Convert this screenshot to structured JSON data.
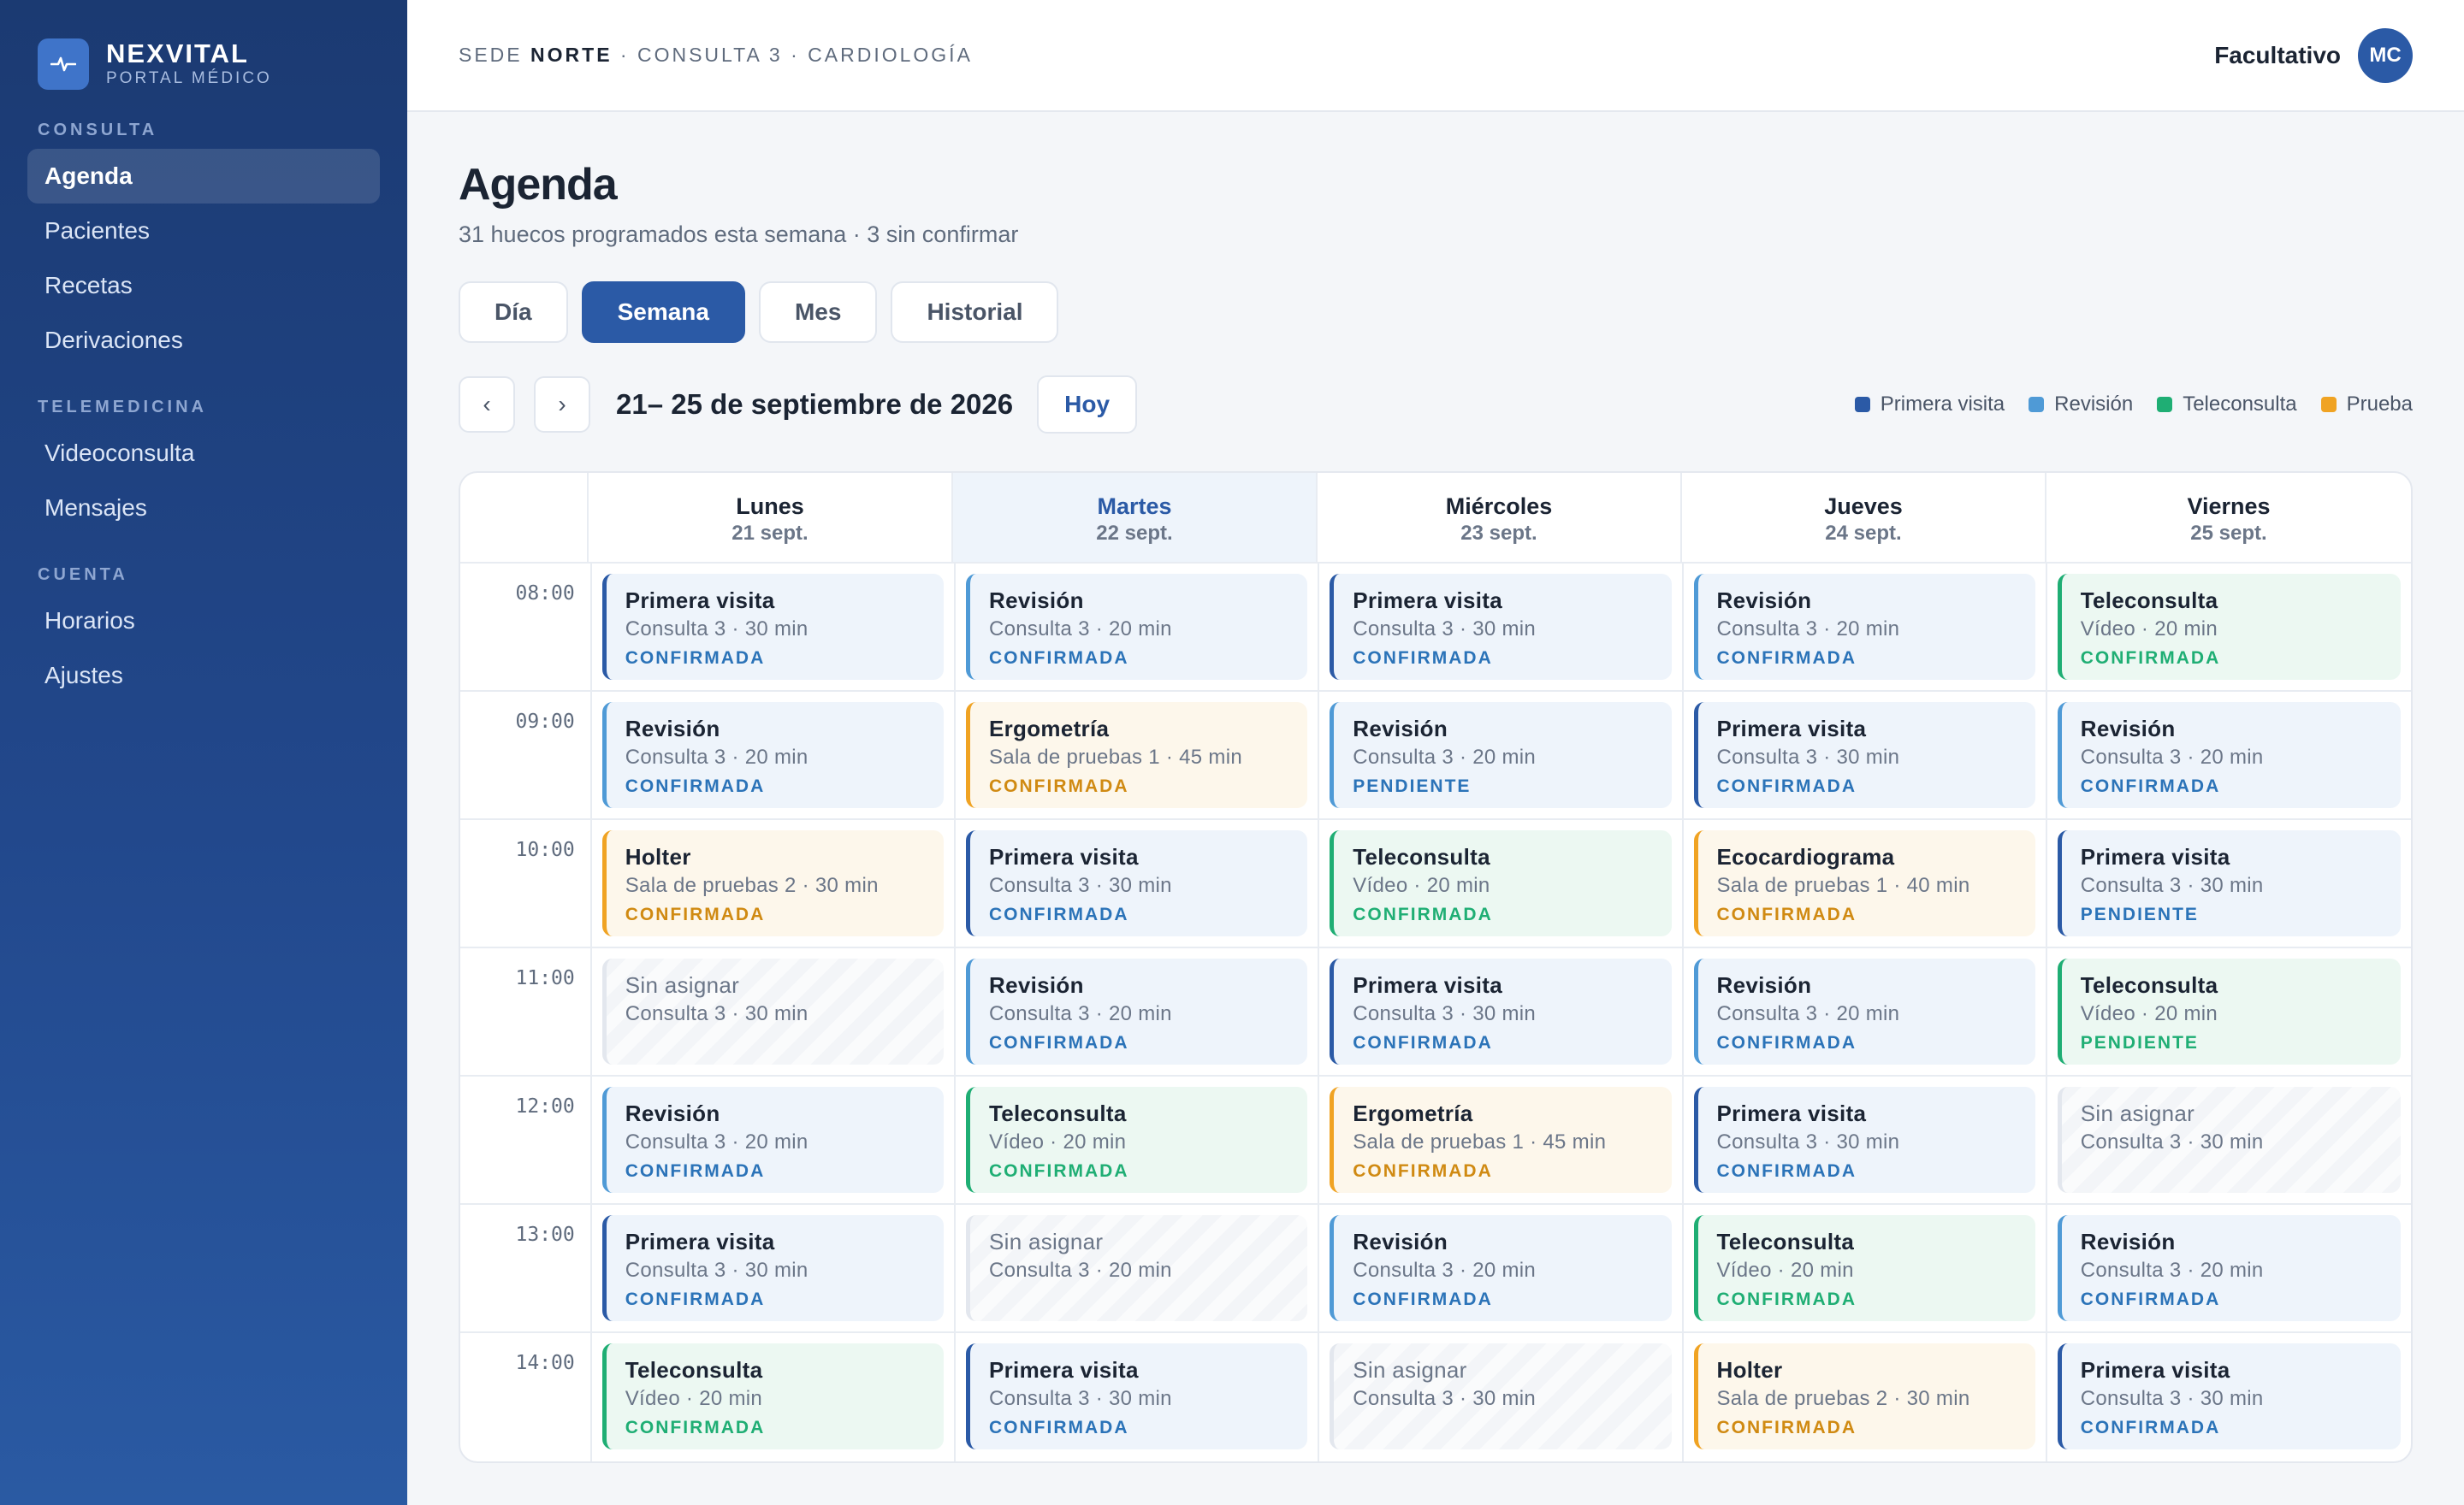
{
  "brand": {
    "name": "NEXVITAL",
    "subtitle": "PORTAL MÉDICO"
  },
  "sidebar": {
    "sections": [
      {
        "title": "CONSULTA",
        "items": [
          {
            "label": "Agenda",
            "active": true
          },
          {
            "label": "Pacientes"
          },
          {
            "label": "Recetas"
          },
          {
            "label": "Derivaciones"
          }
        ]
      },
      {
        "title": "TELEMEDICINA",
        "items": [
          {
            "label": "Videoconsulta"
          },
          {
            "label": "Mensajes"
          }
        ]
      },
      {
        "title": "CUENTA",
        "items": [
          {
            "label": "Horarios"
          },
          {
            "label": "Ajustes"
          }
        ]
      }
    ]
  },
  "header": {
    "breadcrumb_prefix": "SEDE",
    "breadcrumb_site": "NORTE",
    "breadcrumb_rest": "· CONSULTA 3 · CARDIOLOGÍA",
    "user_role": "Facultativo",
    "avatar_initials": "MC"
  },
  "page": {
    "title": "Agenda",
    "subtitle": "31 huecos programados esta semana · 3 sin confirmar"
  },
  "views": [
    {
      "label": "Día"
    },
    {
      "label": "Semana",
      "active": true
    },
    {
      "label": "Mes"
    },
    {
      "label": "Historial"
    }
  ],
  "controls": {
    "prev_icon": "‹",
    "next_icon": "›",
    "range": "21– 25 de septiembre de 2026",
    "today_label": "Hoy"
  },
  "legend": [
    {
      "label": "Primera visita",
      "color": "#2b5aa6"
    },
    {
      "label": "Revisión",
      "color": "#4f9ad6"
    },
    {
      "label": "Teleconsulta",
      "color": "#1fae74"
    },
    {
      "label": "Prueba",
      "color": "#f0a323"
    }
  ],
  "calendar": {
    "days": [
      {
        "name": "Lunes",
        "date": "21 sept."
      },
      {
        "name": "Martes",
        "date": "22 sept.",
        "today": true
      },
      {
        "name": "Miércoles",
        "date": "23 sept."
      },
      {
        "name": "Jueves",
        "date": "24 sept."
      },
      {
        "name": "Viernes",
        "date": "25 sept."
      }
    ],
    "rows": [
      {
        "time": "08:00",
        "slots": [
          {
            "type": "primera",
            "title": "Primera visita",
            "detail": "Consulta 3 · 30 min",
            "status": "CONFIRMADA"
          },
          {
            "type": "revision",
            "title": "Revisión",
            "detail": "Consulta 3 · 20 min",
            "status": "CONFIRMADA"
          },
          {
            "type": "primera",
            "title": "Primera visita",
            "detail": "Consulta 3 · 30 min",
            "status": "CONFIRMADA"
          },
          {
            "type": "revision",
            "title": "Revisión",
            "detail": "Consulta 3 · 20 min",
            "status": "CONFIRMADA"
          },
          {
            "type": "tele",
            "title": "Teleconsulta",
            "detail": "Vídeo · 20 min",
            "status": "CONFIRMADA"
          }
        ]
      },
      {
        "time": "09:00",
        "slots": [
          {
            "type": "revision",
            "title": "Revisión",
            "detail": "Consulta 3 · 20 min",
            "status": "CONFIRMADA"
          },
          {
            "type": "prueba",
            "title": "Ergometría",
            "detail": "Sala de pruebas 1 · 45 min",
            "status": "CONFIRMADA"
          },
          {
            "type": "revision",
            "title": "Revisión",
            "detail": "Consulta 3 · 20 min",
            "status": "PENDIENTE"
          },
          {
            "type": "primera",
            "title": "Primera visita",
            "detail": "Consulta 3 · 30 min",
            "status": "CONFIRMADA"
          },
          {
            "type": "revision",
            "title": "Revisión",
            "detail": "Consulta 3 · 20 min",
            "status": "CONFIRMADA"
          }
        ]
      },
      {
        "time": "10:00",
        "slots": [
          {
            "type": "prueba",
            "title": "Holter",
            "detail": "Sala de pruebas 2 · 30 min",
            "status": "CONFIRMADA"
          },
          {
            "type": "primera",
            "title": "Primera visita",
            "detail": "Consulta 3 · 30 min",
            "status": "CONFIRMADA"
          },
          {
            "type": "tele",
            "title": "Teleconsulta",
            "detail": "Vídeo · 20 min",
            "status": "CONFIRMADA"
          },
          {
            "type": "prueba",
            "title": "Ecocardiograma",
            "detail": "Sala de pruebas 1 · 40 min",
            "status": "CONFIRMADA"
          },
          {
            "type": "primera",
            "title": "Primera visita",
            "detail": "Consulta 3 · 30 min",
            "status": "PENDIENTE"
          }
        ]
      },
      {
        "time": "11:00",
        "slots": [
          {
            "type": "empty",
            "title": "Sin asignar",
            "detail": "Consulta 3 · 30 min",
            "status": ""
          },
          {
            "type": "revision",
            "title": "Revisión",
            "detail": "Consulta 3 · 20 min",
            "status": "CONFIRMADA"
          },
          {
            "type": "primera",
            "title": "Primera visita",
            "detail": "Consulta 3 · 30 min",
            "status": "CONFIRMADA"
          },
          {
            "type": "revision",
            "title": "Revisión",
            "detail": "Consulta 3 · 20 min",
            "status": "CONFIRMADA"
          },
          {
            "type": "tele",
            "title": "Teleconsulta",
            "detail": "Vídeo · 20 min",
            "status": "PENDIENTE"
          }
        ]
      },
      {
        "time": "12:00",
        "slots": [
          {
            "type": "revision",
            "title": "Revisión",
            "detail": "Consulta 3 · 20 min",
            "status": "CONFIRMADA"
          },
          {
            "type": "tele",
            "title": "Teleconsulta",
            "detail": "Vídeo · 20 min",
            "status": "CONFIRMADA"
          },
          {
            "type": "prueba",
            "title": "Ergometría",
            "detail": "Sala de pruebas 1 · 45 min",
            "status": "CONFIRMADA"
          },
          {
            "type": "primera",
            "title": "Primera visita",
            "detail": "Consulta 3 · 30 min",
            "status": "CONFIRMADA"
          },
          {
            "type": "empty",
            "title": "Sin asignar",
            "detail": "Consulta 3 · 30 min",
            "status": ""
          }
        ]
      },
      {
        "time": "13:00",
        "slots": [
          {
            "type": "primera",
            "title": "Primera visita",
            "detail": "Consulta 3 · 30 min",
            "status": "CONFIRMADA"
          },
          {
            "type": "empty",
            "title": "Sin asignar",
            "detail": "Consulta 3 · 20 min",
            "status": ""
          },
          {
            "type": "revision",
            "title": "Revisión",
            "detail": "Consulta 3 · 20 min",
            "status": "CONFIRMADA"
          },
          {
            "type": "tele",
            "title": "Teleconsulta",
            "detail": "Vídeo · 20 min",
            "status": "CONFIRMADA"
          },
          {
            "type": "revision",
            "title": "Revisión",
            "detail": "Consulta 3 · 20 min",
            "status": "CONFIRMADA"
          }
        ]
      },
      {
        "time": "14:00",
        "slots": [
          {
            "type": "tele",
            "title": "Teleconsulta",
            "detail": "Vídeo · 20 min",
            "status": "CONFIRMADA"
          },
          {
            "type": "primera",
            "title": "Primera visita",
            "detail": "Consulta 3 · 30 min",
            "status": "CONFIRMADA"
          },
          {
            "type": "empty",
            "title": "Sin asignar",
            "detail": "Consulta 3 · 30 min",
            "status": ""
          },
          {
            "type": "prueba",
            "title": "Holter",
            "detail": "Sala de pruebas 2 · 30 min",
            "status": "CONFIRMADA"
          },
          {
            "type": "primera",
            "title": "Primera visita",
            "detail": "Consulta 3 · 30 min",
            "status": "CONFIRMADA"
          }
        ]
      }
    ]
  }
}
